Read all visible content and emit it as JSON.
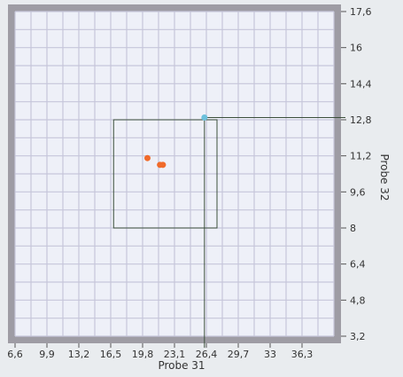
{
  "chart_data": {
    "type": "scatter",
    "xlabel": "Probe 31",
    "ylabel": "Probe 32",
    "xlim": [
      6.6,
      39.6
    ],
    "ylim": [
      3.2,
      17.6
    ],
    "x_ticks": [
      "6,6",
      "9,9",
      "13,2",
      "16,5",
      "19,8",
      "23,1",
      "26,4",
      "29,7",
      "33",
      "36,3"
    ],
    "y_ticks": [
      "3,2",
      "4,8",
      "6,4",
      "8",
      "9,6",
      "11,2",
      "12,8",
      "14,4",
      "16",
      "17,6"
    ],
    "grid": true,
    "series": [
      {
        "color": "#f06a2a",
        "points": [
          {
            "x": 20.3,
            "y": 11.1
          },
          {
            "x": 21.6,
            "y": 10.8
          },
          {
            "x": 21.9,
            "y": 10.8
          }
        ]
      },
      {
        "color": "#6cc0dc",
        "points": [
          {
            "x": 26.2,
            "y": 12.9
          }
        ]
      }
    ],
    "selection_box": {
      "x_min": 16.8,
      "x_max": 27.5,
      "y_min": 8.0,
      "y_max": 12.8
    },
    "crosshair": {
      "x": 26.2,
      "y": 12.9
    }
  }
}
